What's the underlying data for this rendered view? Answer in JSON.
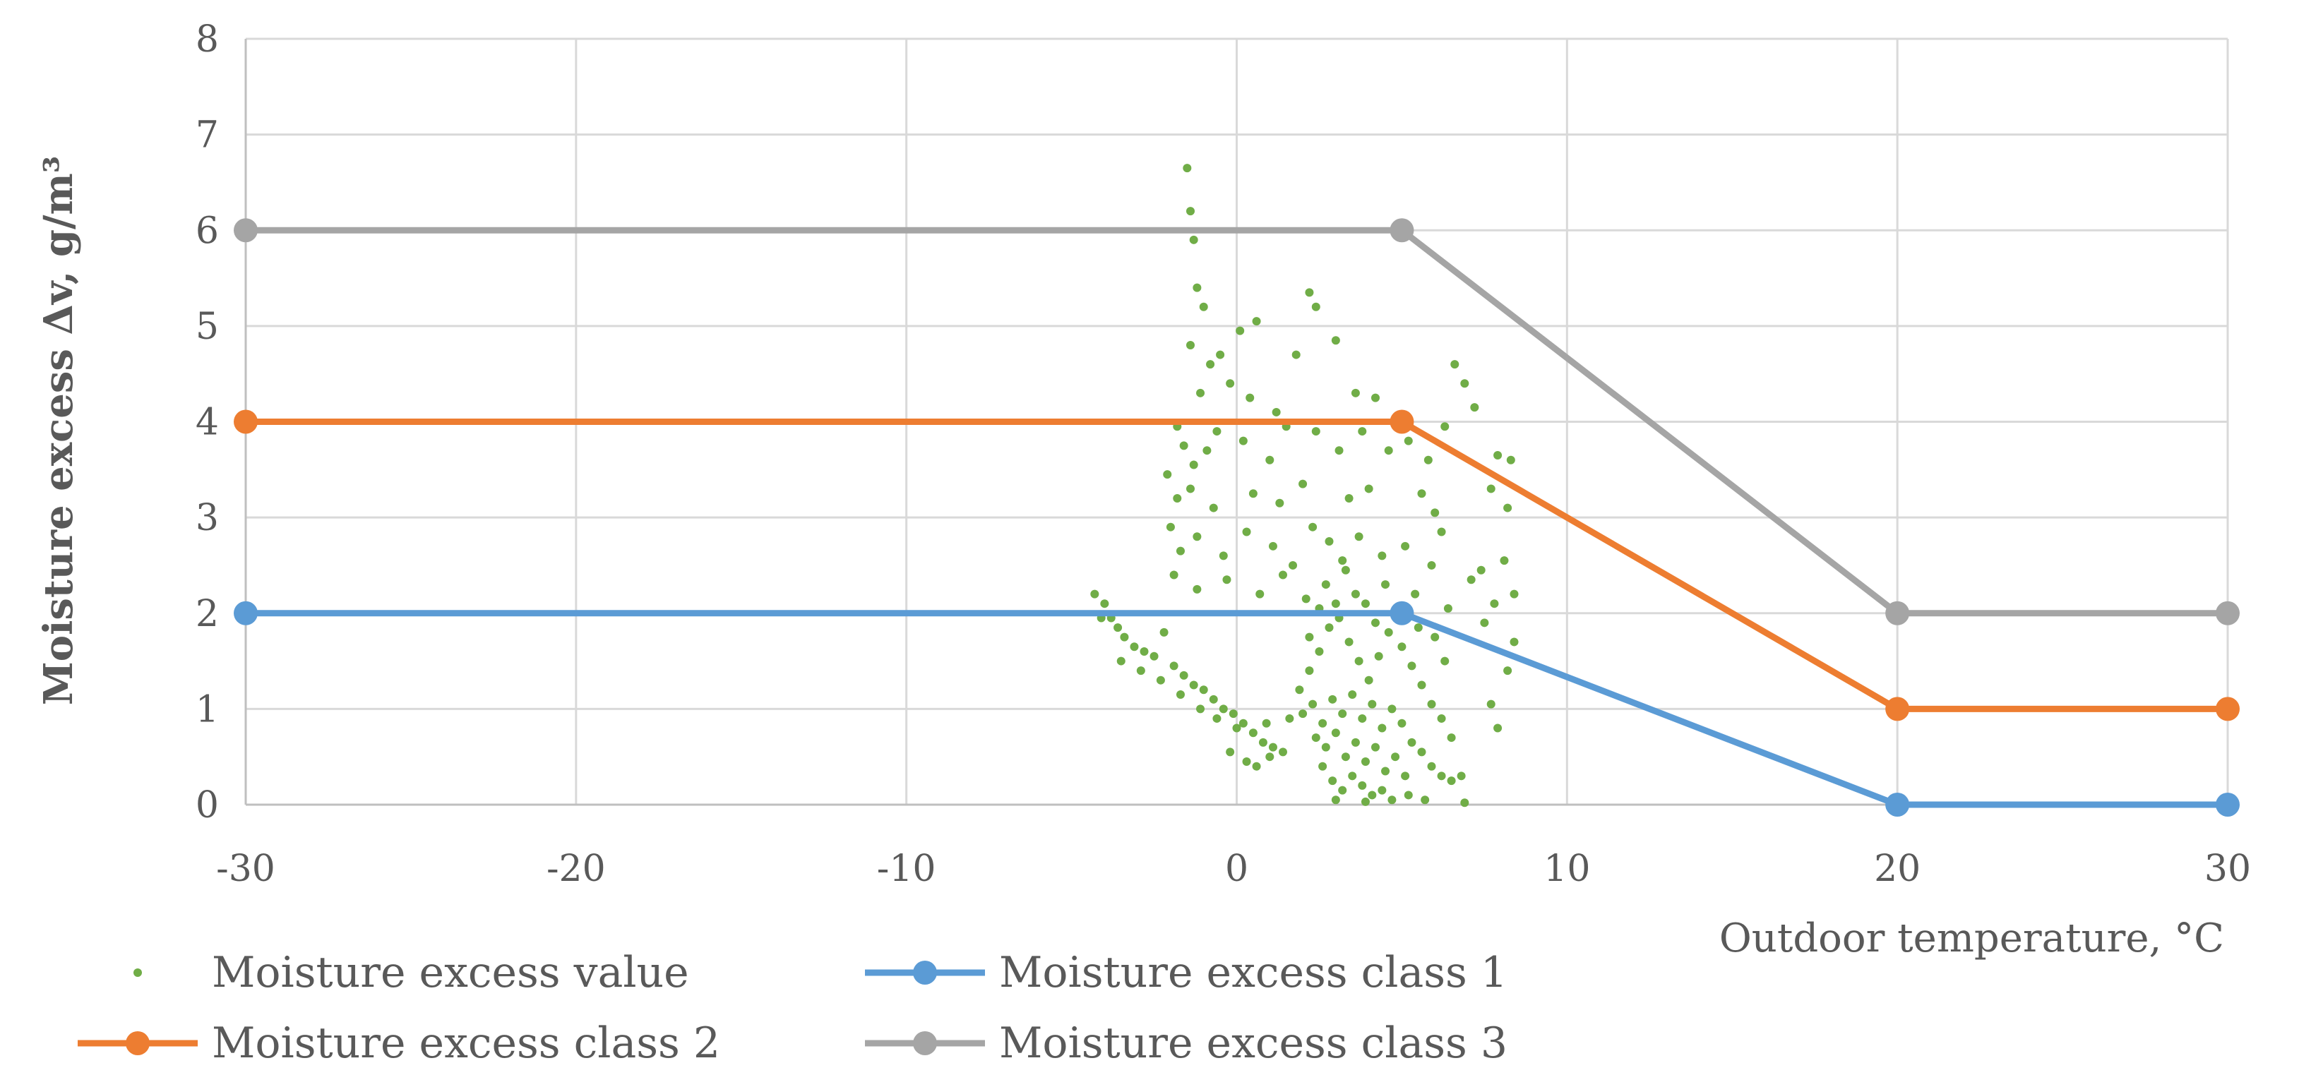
{
  "chart_data": {
    "type": "scatter+line",
    "xlabel": "Outdoor temperature, °C",
    "ylabel": "Moisture excess Δv, g/m³",
    "xlim": [
      -30,
      30
    ],
    "ylim": [
      0,
      8
    ],
    "xticks": [
      -30,
      -20,
      -10,
      0,
      10,
      20,
      30
    ],
    "yticks": [
      0,
      1,
      2,
      3,
      4,
      5,
      6,
      7,
      8
    ],
    "grid": true,
    "legend_position": "bottom",
    "series": [
      {
        "name": "Moisture excess value",
        "kind": "scatter",
        "color": "#70AD47",
        "points": [
          [
            -1.5,
            6.65
          ],
          [
            -1.4,
            6.2
          ],
          [
            -1.3,
            5.9
          ],
          [
            -1.2,
            5.4
          ],
          [
            -1.0,
            5.2
          ],
          [
            -0.5,
            4.7
          ],
          [
            0.1,
            4.95
          ],
          [
            0.6,
            5.05
          ],
          [
            2.2,
            5.35
          ],
          [
            2.4,
            5.2
          ],
          [
            -1.4,
            4.8
          ],
          [
            -1.1,
            4.3
          ],
          [
            -0.8,
            4.6
          ],
          [
            -0.2,
            4.4
          ],
          [
            0.4,
            4.25
          ],
          [
            1.2,
            4.1
          ],
          [
            1.8,
            4.7
          ],
          [
            3.0,
            4.85
          ],
          [
            3.6,
            4.3
          ],
          [
            4.2,
            4.25
          ],
          [
            6.6,
            4.6
          ],
          [
            6.9,
            4.4
          ],
          [
            7.2,
            4.15
          ],
          [
            -1.8,
            3.95
          ],
          [
            -1.6,
            3.75
          ],
          [
            -1.3,
            3.55
          ],
          [
            -0.9,
            3.7
          ],
          [
            -0.6,
            3.9
          ],
          [
            0.2,
            3.8
          ],
          [
            1.0,
            3.6
          ],
          [
            1.5,
            3.95
          ],
          [
            2.4,
            3.9
          ],
          [
            3.1,
            3.7
          ],
          [
            3.8,
            3.9
          ],
          [
            4.6,
            3.7
          ],
          [
            5.2,
            3.8
          ],
          [
            5.8,
            3.6
          ],
          [
            6.3,
            3.95
          ],
          [
            7.9,
            3.65
          ],
          [
            8.3,
            3.6
          ],
          [
            -2.1,
            3.45
          ],
          [
            -1.8,
            3.2
          ],
          [
            -1.4,
            3.3
          ],
          [
            -0.7,
            3.1
          ],
          [
            0.5,
            3.25
          ],
          [
            1.3,
            3.15
          ],
          [
            2.0,
            3.35
          ],
          [
            3.4,
            3.2
          ],
          [
            4.0,
            3.3
          ],
          [
            5.6,
            3.25
          ],
          [
            6.0,
            3.05
          ],
          [
            7.7,
            3.3
          ],
          [
            8.2,
            3.1
          ],
          [
            -2.0,
            2.9
          ],
          [
            -1.7,
            2.65
          ],
          [
            -1.2,
            2.8
          ],
          [
            -0.4,
            2.6
          ],
          [
            0.3,
            2.85
          ],
          [
            1.1,
            2.7
          ],
          [
            1.7,
            2.5
          ],
          [
            2.3,
            2.9
          ],
          [
            2.8,
            2.75
          ],
          [
            3.2,
            2.55
          ],
          [
            3.7,
            2.8
          ],
          [
            4.4,
            2.6
          ],
          [
            5.1,
            2.7
          ],
          [
            5.9,
            2.5
          ],
          [
            6.2,
            2.85
          ],
          [
            7.4,
            2.45
          ],
          [
            8.1,
            2.55
          ],
          [
            -1.9,
            2.4
          ],
          [
            -1.2,
            2.25
          ],
          [
            -0.3,
            2.35
          ],
          [
            0.7,
            2.2
          ],
          [
            1.4,
            2.4
          ],
          [
            2.1,
            2.15
          ],
          [
            2.7,
            2.3
          ],
          [
            3.3,
            2.45
          ],
          [
            3.9,
            2.1
          ],
          [
            4.5,
            2.3
          ],
          [
            5.4,
            2.2
          ],
          [
            6.4,
            2.05
          ],
          [
            7.1,
            2.35
          ],
          [
            7.8,
            2.1
          ],
          [
            8.4,
            2.2
          ],
          [
            -4.3,
            2.2
          ],
          [
            -4.0,
            2.1
          ],
          [
            -3.8,
            1.95
          ],
          [
            -3.6,
            1.85
          ],
          [
            -3.4,
            1.75
          ],
          [
            -3.1,
            1.65
          ],
          [
            -2.8,
            1.6
          ],
          [
            -2.5,
            1.55
          ],
          [
            -2.2,
            1.8
          ],
          [
            -1.9,
            1.45
          ],
          [
            -1.6,
            1.35
          ],
          [
            -1.3,
            1.25
          ],
          [
            -1.0,
            1.2
          ],
          [
            -0.7,
            1.1
          ],
          [
            -0.4,
            1.0
          ],
          [
            -0.1,
            0.95
          ],
          [
            0.2,
            0.85
          ],
          [
            0.5,
            0.75
          ],
          [
            0.8,
            0.65
          ],
          [
            1.1,
            0.6
          ],
          [
            1.4,
            0.55
          ],
          [
            -0.2,
            0.55
          ],
          [
            0.3,
            0.45
          ],
          [
            0.6,
            0.4
          ],
          [
            1.0,
            0.5
          ],
          [
            -4.1,
            1.95
          ],
          [
            -3.5,
            1.5
          ],
          [
            -2.9,
            1.4
          ],
          [
            -2.3,
            1.3
          ],
          [
            -1.7,
            1.15
          ],
          [
            -1.1,
            1.0
          ],
          [
            -0.6,
            0.9
          ],
          [
            0.0,
            0.8
          ],
          [
            0.9,
            0.85
          ],
          [
            1.6,
            0.9
          ],
          [
            1.9,
            1.2
          ],
          [
            2.2,
            1.4
          ],
          [
            2.5,
            1.6
          ],
          [
            2.8,
            1.85
          ],
          [
            3.1,
            1.95
          ],
          [
            3.4,
            1.7
          ],
          [
            3.7,
            1.5
          ],
          [
            4.0,
            1.3
          ],
          [
            4.3,
            1.55
          ],
          [
            4.6,
            1.8
          ],
          [
            5.0,
            1.65
          ],
          [
            5.3,
            1.45
          ],
          [
            5.6,
            1.25
          ],
          [
            5.9,
            1.05
          ],
          [
            6.2,
            0.9
          ],
          [
            6.5,
            0.7
          ],
          [
            7.7,
            1.05
          ],
          [
            7.9,
            0.8
          ],
          [
            8.2,
            1.4
          ],
          [
            8.4,
            1.7
          ],
          [
            2.0,
            0.95
          ],
          [
            2.3,
            1.05
          ],
          [
            2.6,
            0.85
          ],
          [
            2.9,
            1.1
          ],
          [
            3.2,
            0.95
          ],
          [
            3.5,
            1.15
          ],
          [
            3.8,
            0.9
          ],
          [
            4.1,
            1.05
          ],
          [
            4.4,
            0.8
          ],
          [
            4.7,
            1.0
          ],
          [
            5.0,
            0.85
          ],
          [
            5.3,
            0.65
          ],
          [
            5.6,
            0.55
          ],
          [
            5.9,
            0.4
          ],
          [
            6.2,
            0.3
          ],
          [
            6.5,
            0.25
          ],
          [
            6.8,
            0.3
          ],
          [
            2.4,
            0.7
          ],
          [
            2.7,
            0.6
          ],
          [
            3.0,
            0.75
          ],
          [
            3.3,
            0.5
          ],
          [
            3.6,
            0.65
          ],
          [
            3.9,
            0.45
          ],
          [
            4.2,
            0.6
          ],
          [
            4.5,
            0.35
          ],
          [
            4.8,
            0.5
          ],
          [
            5.1,
            0.3
          ],
          [
            2.6,
            0.4
          ],
          [
            2.9,
            0.25
          ],
          [
            3.2,
            0.15
          ],
          [
            3.5,
            0.3
          ],
          [
            3.8,
            0.2
          ],
          [
            4.1,
            0.1
          ],
          [
            4.4,
            0.15
          ],
          [
            4.7,
            0.05
          ],
          [
            5.2,
            0.1
          ],
          [
            5.7,
            0.05
          ],
          [
            6.9,
            0.02
          ],
          [
            3.0,
            0.05
          ],
          [
            3.9,
            0.03
          ],
          [
            2.2,
            1.75
          ],
          [
            2.5,
            2.05
          ],
          [
            3.0,
            2.1
          ],
          [
            3.6,
            2.2
          ],
          [
            4.2,
            1.9
          ],
          [
            4.9,
            2.05
          ],
          [
            5.5,
            1.85
          ],
          [
            6.0,
            1.75
          ],
          [
            6.3,
            1.5
          ],
          [
            7.5,
            1.9
          ]
        ]
      },
      {
        "name": "Moisture excess class 1",
        "kind": "line",
        "color": "#5B9BD5",
        "points": [
          [
            -30,
            2
          ],
          [
            5,
            2
          ],
          [
            20,
            0
          ],
          [
            30,
            0
          ]
        ]
      },
      {
        "name": "Moisture excess class 2",
        "kind": "line",
        "color": "#ED7D31",
        "points": [
          [
            -30,
            4
          ],
          [
            5,
            4
          ],
          [
            20,
            1
          ],
          [
            30,
            1
          ]
        ]
      },
      {
        "name": "Moisture excess class 3",
        "kind": "line",
        "color": "#A5A5A5",
        "points": [
          [
            -30,
            6
          ],
          [
            5,
            6
          ],
          [
            20,
            2
          ],
          [
            30,
            2
          ]
        ]
      }
    ]
  }
}
